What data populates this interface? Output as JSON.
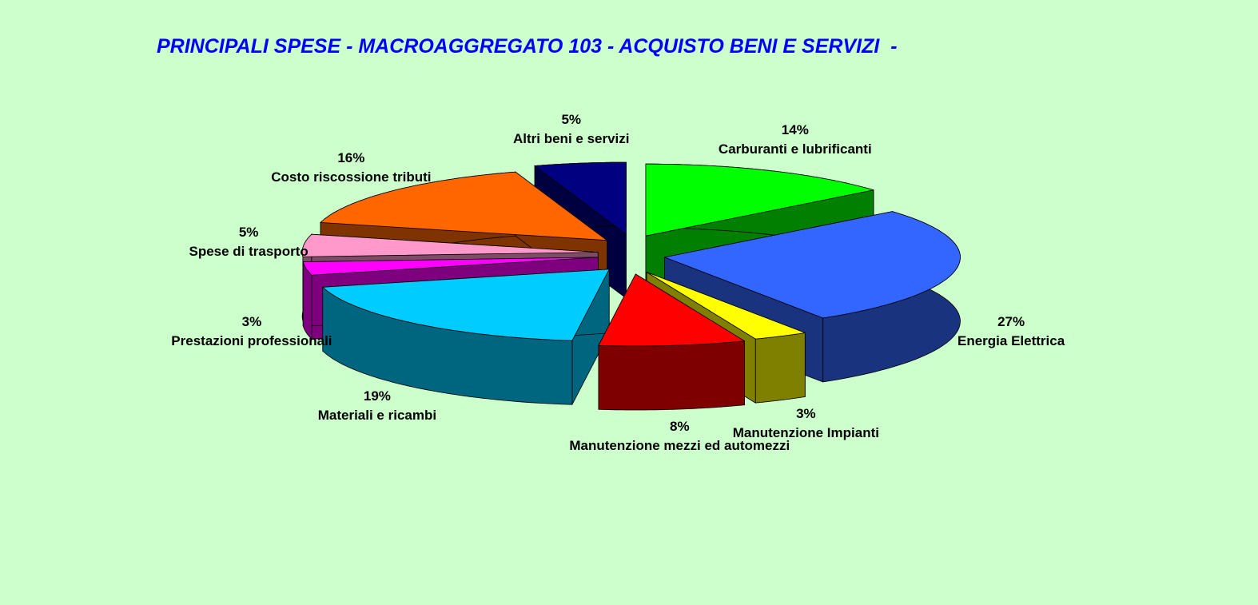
{
  "chart_data": {
    "type": "pie3d",
    "title": "PRINCIPALI SPESE - MACROAGGREGATO 103 - ACQUISTO BENI E SERVIZI  -",
    "categories": [
      "Carburanti e lubrificanti",
      "Energia Elettrica",
      "Manutenzione Impianti",
      "Manutenzione mezzi ed automezzi",
      "Materiali e ricambi",
      "Prestazioni professionali",
      "Spese di trasporto",
      "Costo riscossione tributi",
      "Altri beni e servizi"
    ],
    "values": [
      14,
      27,
      3,
      8,
      19,
      3,
      5,
      16,
      5
    ],
    "value_labels": [
      "14%",
      "27%",
      "3%",
      "8%",
      "19%",
      "3%",
      "5%",
      "16%",
      "5%"
    ],
    "colors": [
      "#00ff00",
      "#3366ff",
      "#ffff00",
      "#ff0000",
      "#00ccff",
      "#ff00ff",
      "#ff99cc",
      "#ff6600",
      "#000080"
    ]
  }
}
